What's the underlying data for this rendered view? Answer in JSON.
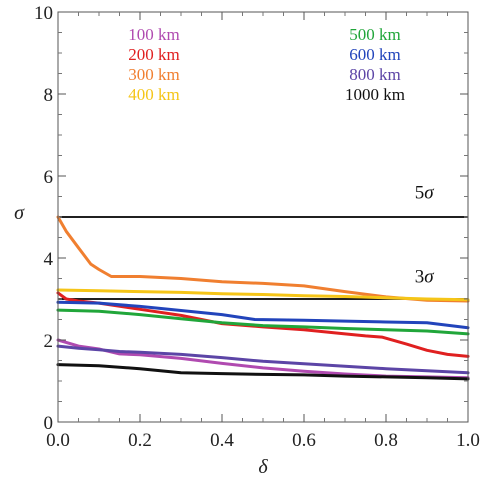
{
  "chart_data": {
    "type": "line",
    "xlabel": "δ",
    "ylabel": "σ",
    "xlim": [
      0,
      1
    ],
    "ylim": [
      0,
      10
    ],
    "x_ticks": [
      "0.0",
      "0.2",
      "0.4",
      "0.6",
      "0.8",
      "1.0"
    ],
    "y_ticks": [
      "0",
      "2",
      "4",
      "6",
      "8",
      "10"
    ],
    "grid": false,
    "legend_position": "top",
    "reference_lines": [
      {
        "y": 5,
        "label": "5σ",
        "label_num": "5",
        "label_sym": "σ",
        "label_x": 0.87,
        "label_y": 5.45
      },
      {
        "y": 3,
        "label": "3σ",
        "label_num": "3",
        "label_sym": "σ",
        "label_x": 0.87,
        "label_y": 3.4
      }
    ],
    "series": [
      {
        "name": "100 km",
        "color": "#b04ab0",
        "x": [
          0,
          0.05,
          0.1,
          0.15,
          0.2,
          0.3,
          0.4,
          0.5,
          0.6,
          0.7,
          0.8,
          0.9,
          1.0
        ],
        "y": [
          2.0,
          1.85,
          1.78,
          1.66,
          1.64,
          1.55,
          1.43,
          1.32,
          1.24,
          1.17,
          1.12,
          1.1,
          1.08
        ]
      },
      {
        "name": "200 km",
        "color": "#e02020",
        "x": [
          0,
          0.02,
          0.05,
          0.1,
          0.2,
          0.3,
          0.4,
          0.5,
          0.6,
          0.7,
          0.75,
          0.79,
          0.85,
          0.9,
          0.95,
          1.0
        ],
        "y": [
          3.15,
          3.0,
          2.95,
          2.9,
          2.75,
          2.6,
          2.4,
          2.32,
          2.25,
          2.15,
          2.1,
          2.07,
          1.9,
          1.75,
          1.65,
          1.6
        ]
      },
      {
        "name": "300 km",
        "color": "#f07f30",
        "x": [
          0,
          0.02,
          0.05,
          0.08,
          0.1,
          0.13,
          0.2,
          0.3,
          0.4,
          0.5,
          0.6,
          0.7,
          0.8,
          0.9,
          1.0
        ],
        "y": [
          5.0,
          4.65,
          4.25,
          3.85,
          3.72,
          3.55,
          3.55,
          3.5,
          3.42,
          3.38,
          3.32,
          3.18,
          3.05,
          2.97,
          2.95
        ]
      },
      {
        "name": "400 km",
        "color": "#f5c518",
        "x": [
          0,
          0.1,
          0.2,
          0.3,
          0.4,
          0.5,
          0.6,
          0.7,
          0.8,
          0.9,
          1.0
        ],
        "y": [
          3.22,
          3.2,
          3.18,
          3.16,
          3.13,
          3.11,
          3.08,
          3.06,
          3.03,
          3.0,
          2.98
        ]
      },
      {
        "name": "500 km",
        "color": "#21a63a",
        "x": [
          0,
          0.1,
          0.2,
          0.3,
          0.4,
          0.5,
          0.6,
          0.7,
          0.8,
          0.9,
          1.0
        ],
        "y": [
          2.73,
          2.7,
          2.62,
          2.52,
          2.42,
          2.35,
          2.32,
          2.28,
          2.25,
          2.22,
          2.15
        ]
      },
      {
        "name": "600 km",
        "color": "#2244bb",
        "x": [
          0,
          0.1,
          0.2,
          0.3,
          0.4,
          0.48,
          0.6,
          0.7,
          0.8,
          0.9,
          1.0
        ],
        "y": [
          2.92,
          2.9,
          2.82,
          2.72,
          2.62,
          2.5,
          2.48,
          2.46,
          2.44,
          2.42,
          2.3
        ]
      },
      {
        "name": "800 km",
        "color": "#5c45a6",
        "x": [
          0,
          0.05,
          0.1,
          0.15,
          0.2,
          0.3,
          0.4,
          0.5,
          0.6,
          0.7,
          0.8,
          0.9,
          1.0
        ],
        "y": [
          1.85,
          1.8,
          1.76,
          1.72,
          1.7,
          1.65,
          1.57,
          1.48,
          1.42,
          1.36,
          1.3,
          1.25,
          1.2
        ]
      },
      {
        "name": "1000 km",
        "color": "#111111",
        "x": [
          0,
          0.1,
          0.2,
          0.3,
          0.4,
          0.5,
          0.6,
          0.7,
          0.8,
          0.9,
          1.0
        ],
        "y": [
          1.4,
          1.37,
          1.3,
          1.2,
          1.18,
          1.16,
          1.15,
          1.12,
          1.1,
          1.08,
          1.05
        ]
      }
    ]
  }
}
